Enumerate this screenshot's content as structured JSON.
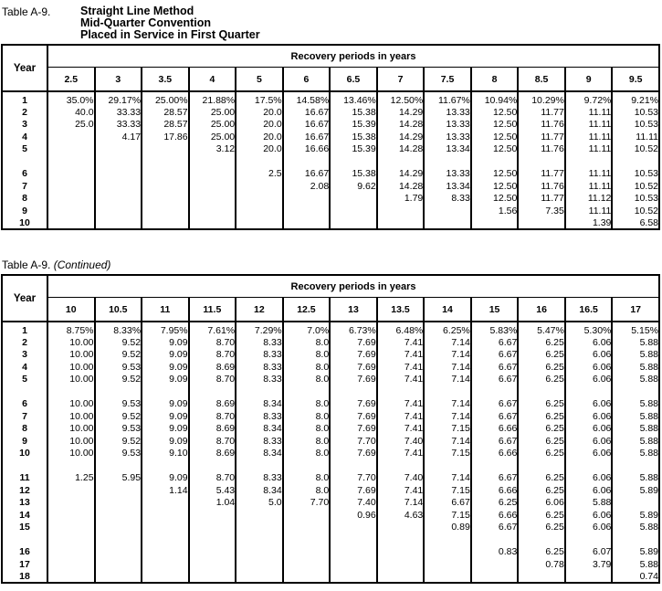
{
  "colors": {
    "text": "#000000",
    "border": "#000000",
    "background": "#ffffff"
  },
  "tables": [
    {
      "label": "Table A-9.",
      "title_lines": [
        "Straight Line Method",
        "Mid-Quarter Convention",
        "Placed in Service in First Quarter"
      ],
      "year_header": "Year",
      "span_header": "Recovery periods in years",
      "columns": [
        "2.5",
        "3",
        "3.5",
        "4",
        "5",
        "6",
        "6.5",
        "7",
        "7.5",
        "8",
        "8.5",
        "9",
        "9.5"
      ],
      "rows": [
        {
          "year": "1",
          "cells": [
            "35.0%",
            "29.17%",
            "25.00%",
            "21.88%",
            "17.5%",
            "14.58%",
            "13.46%",
            "12.50%",
            "11.67%",
            "10.94%",
            "10.29%",
            "9.72%",
            "9.21%"
          ]
        },
        {
          "year": "2",
          "cells": [
            "40.0",
            "33.33",
            "28.57",
            "25.00",
            "20.0",
            "16.67",
            "15.38",
            "14.29",
            "13.33",
            "12.50",
            "11.77",
            "11.11",
            "10.53"
          ]
        },
        {
          "year": "3",
          "cells": [
            "25.0",
            "33.33",
            "28.57",
            "25.00",
            "20.0",
            "16.67",
            "15.39",
            "14.28",
            "13.33",
            "12.50",
            "11.76",
            "11.11",
            "10.53"
          ]
        },
        {
          "year": "4",
          "cells": [
            "",
            "4.17",
            "17.86",
            "25.00",
            "20.0",
            "16.67",
            "15.38",
            "14.29",
            "13.33",
            "12.50",
            "11.77",
            "11.11",
            "11.11"
          ]
        },
        {
          "year": "5",
          "cells": [
            "",
            "",
            "",
            "3.12",
            "20.0",
            "16.66",
            "15.39",
            "14.28",
            "13.34",
            "12.50",
            "11.76",
            "11.11",
            "10.52"
          ]
        },
        {
          "gap": true
        },
        {
          "year": "6",
          "cells": [
            "",
            "",
            "",
            "",
            "2.5",
            "16.67",
            "15.38",
            "14.29",
            "13.33",
            "12.50",
            "11.77",
            "11.11",
            "10.53"
          ]
        },
        {
          "year": "7",
          "cells": [
            "",
            "",
            "",
            "",
            "",
            "2.08",
            "9.62",
            "14.28",
            "13.34",
            "12.50",
            "11.76",
            "11.11",
            "10.52"
          ]
        },
        {
          "year": "8",
          "cells": [
            "",
            "",
            "",
            "",
            "",
            "",
            "",
            "1.79",
            "8.33",
            "12.50",
            "11.77",
            "11.12",
            "10.53"
          ]
        },
        {
          "year": "9",
          "cells": [
            "",
            "",
            "",
            "",
            "",
            "",
            "",
            "",
            "",
            "1.56",
            "7.35",
            "11.11",
            "10.52"
          ]
        },
        {
          "year": "10",
          "cells": [
            "",
            "",
            "",
            "",
            "",
            "",
            "",
            "",
            "",
            "",
            "",
            "1.39",
            "6.58"
          ]
        }
      ]
    },
    {
      "label": "Table A-9.",
      "continued": "(Continued)",
      "year_header": "Year",
      "span_header": "Recovery periods in years",
      "columns": [
        "10",
        "10.5",
        "11",
        "11.5",
        "12",
        "12.5",
        "13",
        "13.5",
        "14",
        "15",
        "16",
        "16.5",
        "17"
      ],
      "rows": [
        {
          "year": "1",
          "cells": [
            "8.75%",
            "8.33%",
            "7.95%",
            "7.61%",
            "7.29%",
            "7.0%",
            "6.73%",
            "6.48%",
            "6.25%",
            "5.83%",
            "5.47%",
            "5.30%",
            "5.15%"
          ]
        },
        {
          "year": "2",
          "cells": [
            "10.00",
            "9.52",
            "9.09",
            "8.70",
            "8.33",
            "8.0",
            "7.69",
            "7.41",
            "7.14",
            "6.67",
            "6.25",
            "6.06",
            "5.88"
          ]
        },
        {
          "year": "3",
          "cells": [
            "10.00",
            "9.52",
            "9.09",
            "8.70",
            "8.33",
            "8.0",
            "7.69",
            "7.41",
            "7.14",
            "6.67",
            "6.25",
            "6.06",
            "5.88"
          ]
        },
        {
          "year": "4",
          "cells": [
            "10.00",
            "9.53",
            "9.09",
            "8.69",
            "8.33",
            "8.0",
            "7.69",
            "7.41",
            "7.14",
            "6.67",
            "6.25",
            "6.06",
            "5.88"
          ]
        },
        {
          "year": "5",
          "cells": [
            "10.00",
            "9.52",
            "9.09",
            "8.70",
            "8.33",
            "8.0",
            "7.69",
            "7.41",
            "7.14",
            "6.67",
            "6.25",
            "6.06",
            "5.88"
          ]
        },
        {
          "gap": true
        },
        {
          "year": "6",
          "cells": [
            "10.00",
            "9.53",
            "9.09",
            "8.69",
            "8.34",
            "8.0",
            "7.69",
            "7.41",
            "7.14",
            "6.67",
            "6.25",
            "6.06",
            "5.88"
          ]
        },
        {
          "year": "7",
          "cells": [
            "10.00",
            "9.52",
            "9.09",
            "8.70",
            "8.33",
            "8.0",
            "7.69",
            "7.41",
            "7.14",
            "6.67",
            "6.25",
            "6.06",
            "5.88"
          ]
        },
        {
          "year": "8",
          "cells": [
            "10.00",
            "9.53",
            "9.09",
            "8.69",
            "8.34",
            "8.0",
            "7.69",
            "7.41",
            "7.15",
            "6.66",
            "6.25",
            "6.06",
            "5.88"
          ]
        },
        {
          "year": "9",
          "cells": [
            "10.00",
            "9.52",
            "9.09",
            "8.70",
            "8.33",
            "8.0",
            "7.70",
            "7.40",
            "7.14",
            "6.67",
            "6.25",
            "6.06",
            "5.88"
          ]
        },
        {
          "year": "10",
          "cells": [
            "10.00",
            "9.53",
            "9.10",
            "8.69",
            "8.34",
            "8.0",
            "7.69",
            "7.41",
            "7.15",
            "6.66",
            "6.25",
            "6.06",
            "5.88"
          ]
        },
        {
          "gap": true
        },
        {
          "year": "11",
          "cells": [
            "1.25",
            "5.95",
            "9.09",
            "8.70",
            "8.33",
            "8.0",
            "7.70",
            "7.40",
            "7.14",
            "6.67",
            "6.25",
            "6.06",
            "5.88"
          ]
        },
        {
          "year": "12",
          "cells": [
            "",
            "",
            "1.14",
            "5.43",
            "8.34",
            "8.0",
            "7.69",
            "7.41",
            "7.15",
            "6.66",
            "6.25",
            "6.06",
            "5.89"
          ]
        },
        {
          "year": "13",
          "cells": [
            "",
            "",
            "",
            "1.04",
            "5.0",
            "7.70",
            "7.40",
            "7.14",
            "6.67",
            "6.25",
            "6.06",
            "5.88",
            ""
          ]
        },
        {
          "year": "14",
          "cells": [
            "",
            "",
            "",
            "",
            "",
            "",
            "0.96",
            "4.63",
            "7.15",
            "6.66",
            "6.25",
            "6.06",
            "5.89"
          ]
        },
        {
          "year": "15",
          "cells": [
            "",
            "",
            "",
            "",
            "",
            "",
            "",
            "",
            "0.89",
            "6.67",
            "6.25",
            "6.06",
            "5.88"
          ]
        },
        {
          "gap": true
        },
        {
          "year": "16",
          "cells": [
            "",
            "",
            "",
            "",
            "",
            "",
            "",
            "",
            "",
            "0.83",
            "6.25",
            "6.07",
            "5.89"
          ]
        },
        {
          "year": "17",
          "cells": [
            "",
            "",
            "",
            "",
            "",
            "",
            "",
            "",
            "",
            "",
            "0.78",
            "3.79",
            "5.88"
          ]
        },
        {
          "year": "18",
          "cells": [
            "",
            "",
            "",
            "",
            "",
            "",
            "",
            "",
            "",
            "",
            "",
            "",
            "0.74"
          ]
        }
      ]
    }
  ]
}
